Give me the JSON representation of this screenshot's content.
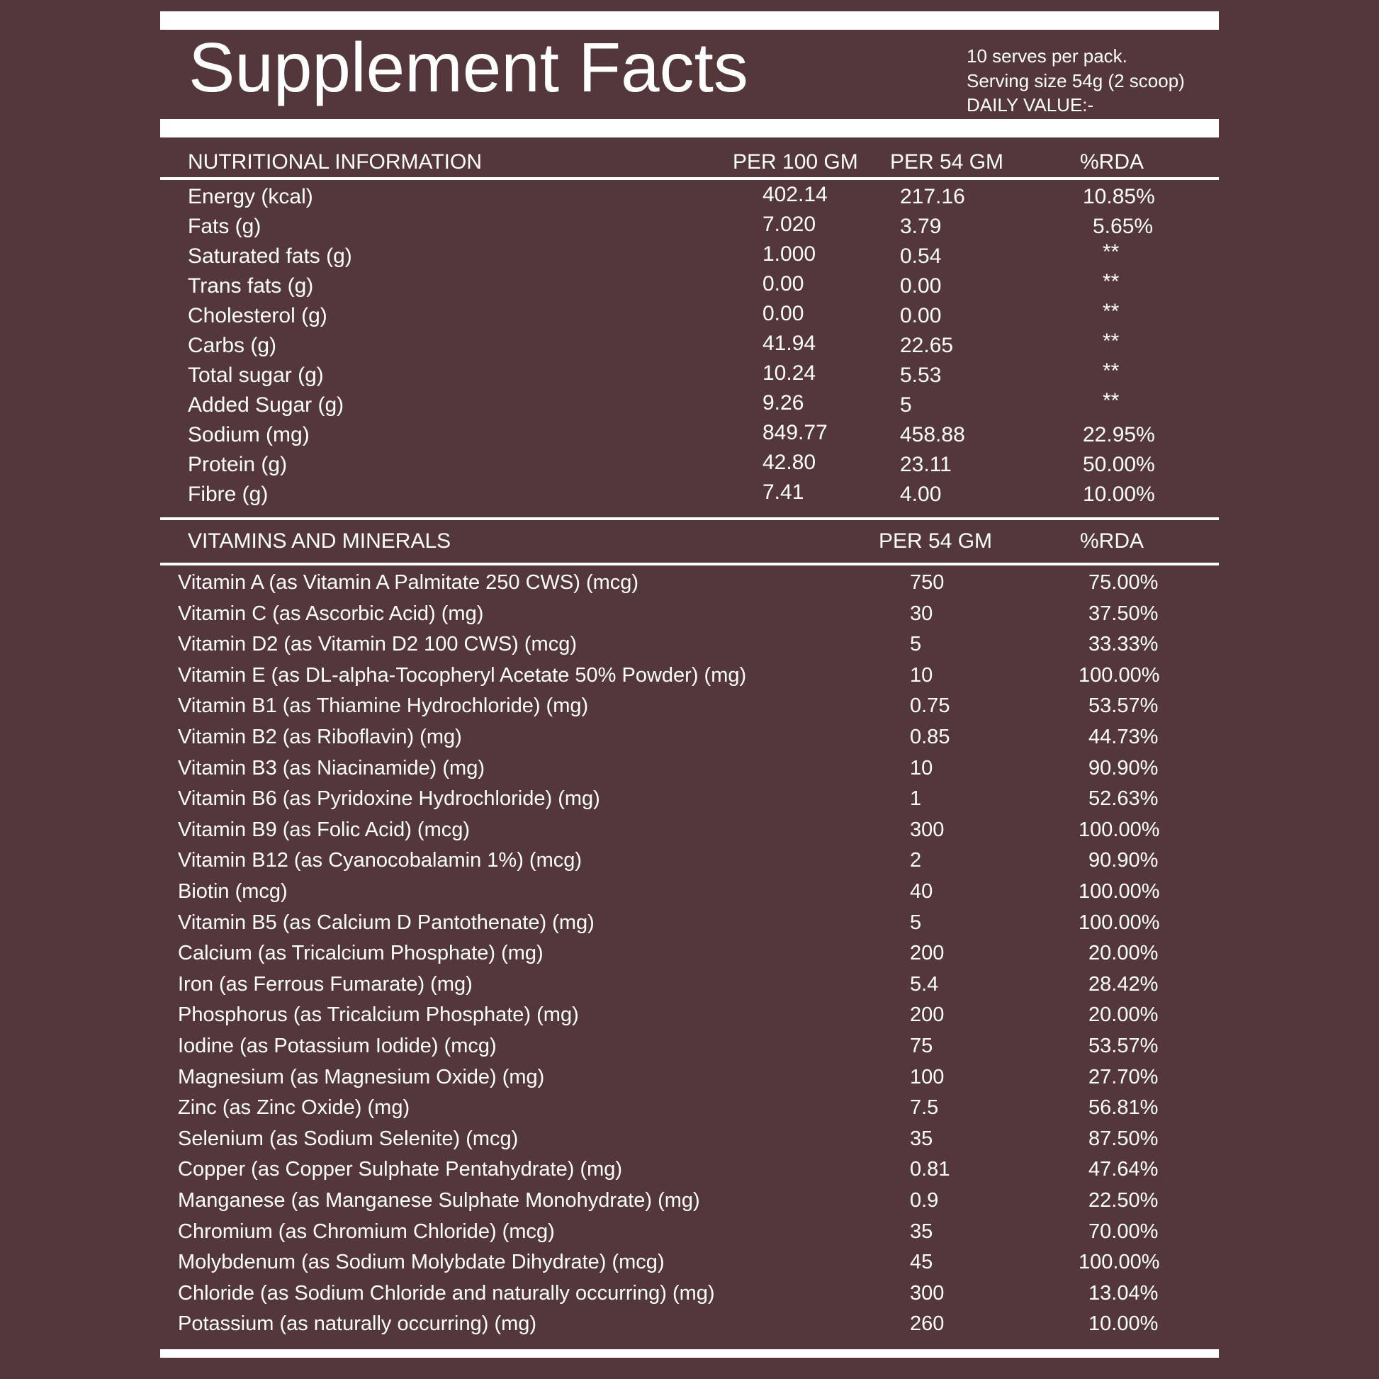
{
  "title": "Supplement Facts",
  "serving_info": {
    "line1": "10 serves per pack.",
    "line2": "Serving size 54g (2 scoop)",
    "line3": "DAILY VALUE:-"
  },
  "nutrition": {
    "headers": {
      "name": "NUTRITIONAL INFORMATION",
      "per100": "PER 100 GM",
      "per54": "PER 54 GM",
      "rda": "%RDA"
    },
    "rows": [
      {
        "name": "Energy  (kcal)",
        "per100": "402.14",
        "per54": "217.16",
        "rda": "10.85%"
      },
      {
        "name": "Fats  (g)",
        "per100": "7.020",
        "per54": "3.79",
        "rda": "5.65%"
      },
      {
        "name": "Saturated fats  (g)",
        "per100": "1.000",
        "per54": "0.54",
        "rda": "**"
      },
      {
        "name": "Trans fats  (g)",
        "per100": "0.00",
        "per54": "0.00",
        "rda": "**"
      },
      {
        "name": "Cholesterol  (g)",
        "per100": "0.00",
        "per54": "0.00",
        "rda": "**"
      },
      {
        "name": "Carbs  (g)",
        "per100": "41.94",
        "per54": "22.65",
        "rda": "**"
      },
      {
        "name": "Total sugar  (g)",
        "per100": "10.24",
        "per54": "5.53",
        "rda": "**"
      },
      {
        "name": "Added Sugar  (g)",
        "per100": "9.26",
        "per54": "5",
        "rda": "**"
      },
      {
        "name": "Sodium  (mg)",
        "per100": "849.77",
        "per54": "458.88",
        "rda": "22.95%"
      },
      {
        "name": "Protein  (g)",
        "per100": "42.80",
        "per54": "23.11",
        "rda": "50.00%"
      },
      {
        "name": "Fibre  (g)",
        "per100": "7.41",
        "per54": "4.00",
        "rda": "10.00%"
      }
    ]
  },
  "vitamins": {
    "headers": {
      "name": "VITAMINS AND MINERALS",
      "per54": "PER 54 GM",
      "rda": "%RDA"
    },
    "rows": [
      {
        "name": "Vitamin A (as Vitamin A Palmitate 250 CWS)  (mcg)",
        "per54": "750",
        "rda": "75.00%"
      },
      {
        "name": "Vitamin C (as Ascorbic Acid) (mg)",
        "per54": "30",
        "rda": "37.50%"
      },
      {
        "name": "Vitamin D2 (as Vitamin D2 100 CWS) (mcg)",
        "per54": "5",
        "rda": "33.33%"
      },
      {
        "name": "Vitamin E (as DL-alpha-Tocopheryl Acetate 50% Powder) (mg)",
        "per54": "10",
        "rda": "100.00%"
      },
      {
        "name": "Vitamin B1  (as Thiamine Hydrochloride) (mg)",
        "per54": "0.75",
        "rda": "53.57%"
      },
      {
        "name": "Vitamin B2  (as Riboflavin) (mg)",
        "per54": "0.85",
        "rda": "44.73%"
      },
      {
        "name": "Vitamin B3  (as Niacinamide) (mg)",
        "per54": "10",
        "rda": "90.90%"
      },
      {
        "name": "Vitamin B6  (as Pyridoxine Hydrochloride) (mg)",
        "per54": "1",
        "rda": "52.63%"
      },
      {
        "name": "Vitamin B9  (as Folic Acid) (mcg)",
        "per54": "300",
        "rda": "100.00%"
      },
      {
        "name": "Vitamin B12  (as Cyanocobalamin 1%) (mcg)",
        "per54": "2",
        "rda": "90.90%"
      },
      {
        "name": "Biotin (mcg)",
        "per54": "40",
        "rda": "100.00%"
      },
      {
        "name": "Vitamin B5  (as Calcium D Pantothenate) (mg)",
        "per54": "5",
        "rda": "100.00%"
      },
      {
        "name": "Calcium  (as Tricalcium Phosphate) (mg)",
        "per54": "200",
        "rda": "20.00%"
      },
      {
        "name": "Iron (as Ferrous Fumarate) (mg)",
        "per54": "5.4",
        "rda": "28.42%"
      },
      {
        "name": "Phosphorus  (as Tricalcium Phosphate) (mg)",
        "per54": "200",
        "rda": "20.00%"
      },
      {
        "name": "Iodine (as Potassium Iodide) (mcg)",
        "per54": "75",
        "rda": "53.57%"
      },
      {
        "name": "Magnesium  (as Magnesium Oxide) (mg)",
        "per54": "100",
        "rda": "27.70%"
      },
      {
        "name": "Zinc (as Zinc Oxide) (mg)",
        "per54": "7.5",
        "rda": "56.81%"
      },
      {
        "name": "Selenium  (as Sodium Selenite) (mcg)",
        "per54": "35",
        "rda": "87.50%"
      },
      {
        "name": "Copper (as Copper Sulphate Pentahydrate) (mg)",
        "per54": "0.81",
        "rda": "47.64%"
      },
      {
        "name": "Manganese  (as Manganese Sulphate Monohydrate) (mg)",
        "per54": "0.9",
        "rda": "22.50%"
      },
      {
        "name": "Chromium  (as Chromium Chloride) (mcg)",
        "per54": "35",
        "rda": "70.00%"
      },
      {
        "name": "Molybdenum  (as Sodium Molybdate Dihydrate) (mcg)",
        "per54": "45",
        "rda": "100.00%"
      },
      {
        "name": "Chloride (as Sodium Chloride and naturally occurring) (mg)",
        "per54": "300",
        "rda": "13.04%"
      },
      {
        "name": "Potassium  (as naturally occurring) (mg)",
        "per54": "260",
        "rda": "10.00%"
      }
    ]
  }
}
